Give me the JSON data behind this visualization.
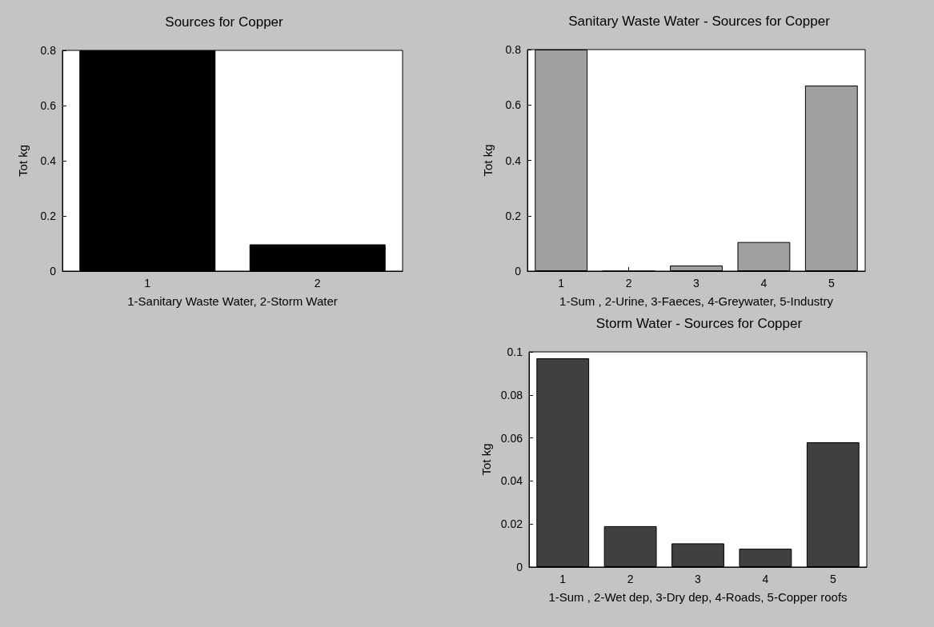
{
  "chart_data": [
    {
      "type": "bar",
      "title": "Sources for Copper",
      "xlabel": "1-Sanitary Waste Water, 2-Storm Water",
      "ylabel": "Tot kg",
      "categories": [
        "1",
        "2"
      ],
      "values": [
        0.8,
        0.097
      ],
      "color": "#000000",
      "ylim": [
        0,
        0.8
      ],
      "yticks": [
        0,
        0.2,
        0.4,
        0.6,
        0.8
      ],
      "grid": false
    },
    {
      "type": "bar",
      "title": "Sanitary Waste Water - Sources for Copper",
      "xlabel": "1-Sum , 2-Urine, 3-Faeces, 4-Greywater, 5-Industry",
      "ylabel": "Tot kg",
      "categories": [
        "1",
        "2",
        "3",
        "4",
        "5"
      ],
      "values": [
        0.8,
        0,
        0.02,
        0.105,
        0.67
      ],
      "color": "#a0a0a0",
      "ylim": [
        0,
        0.8
      ],
      "yticks": [
        0,
        0.2,
        0.4,
        0.6,
        0.8
      ],
      "grid": false
    },
    {
      "type": "bar",
      "title": "Storm Water - Sources for Copper",
      "xlabel": "1-Sum , 2-Wet dep, 3-Dry dep, 4-Roads, 5-Copper roofs",
      "ylabel": "Tot kg",
      "categories": [
        "1",
        "2",
        "3",
        "4",
        "5"
      ],
      "values": [
        0.097,
        0.019,
        0.011,
        0.0085,
        0.058
      ],
      "color": "#404040",
      "ylim": [
        0,
        0.1
      ],
      "yticks": [
        0,
        0.02,
        0.04,
        0.06,
        0.08,
        0.1
      ],
      "grid": false
    }
  ]
}
